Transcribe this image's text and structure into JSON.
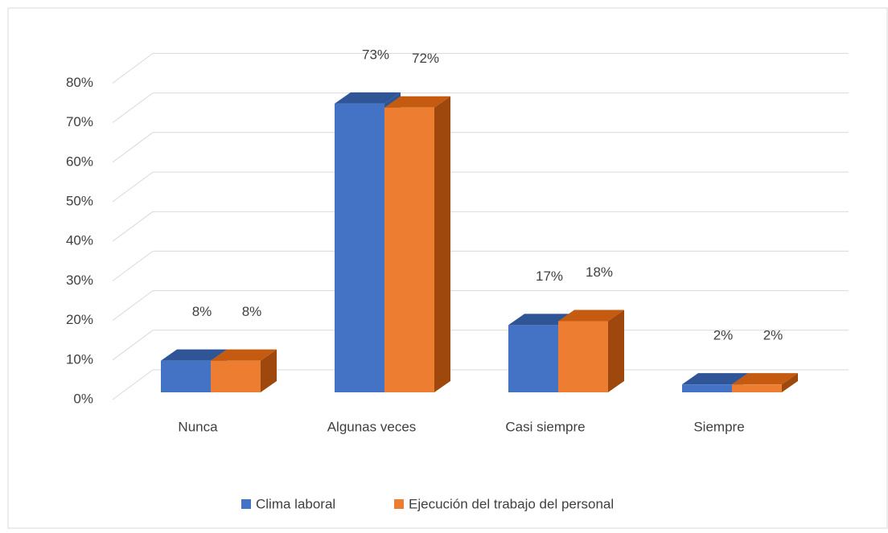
{
  "chart_data": {
    "type": "bar3d",
    "categories": [
      "Nunca",
      "Algunas veces",
      "Casi siempre",
      "Siempre"
    ],
    "series": [
      {
        "name": "Clima laboral",
        "color": "#4472c4",
        "values": [
          8,
          73,
          17,
          2
        ],
        "value_labels": [
          "8%",
          "73%",
          "17%",
          "2%"
        ]
      },
      {
        "name": "Ejecución del trabajo del personal",
        "color": "#ed7d31",
        "values": [
          8,
          72,
          18,
          2
        ],
        "value_labels": [
          "8%",
          "72%",
          "18%",
          "2%"
        ]
      }
    ],
    "ylim": [
      0,
      80
    ],
    "yticks": [
      {
        "value": 0,
        "label": "0%"
      },
      {
        "value": 10,
        "label": "10%"
      },
      {
        "value": 20,
        "label": "20%"
      },
      {
        "value": 30,
        "label": "30%"
      },
      {
        "value": 40,
        "label": "40%"
      },
      {
        "value": 50,
        "label": "50%"
      },
      {
        "value": 60,
        "label": "60%"
      },
      {
        "value": 70,
        "label": "70%"
      },
      {
        "value": 80,
        "label": "80%"
      }
    ],
    "grid": true,
    "legend": "bottom"
  }
}
